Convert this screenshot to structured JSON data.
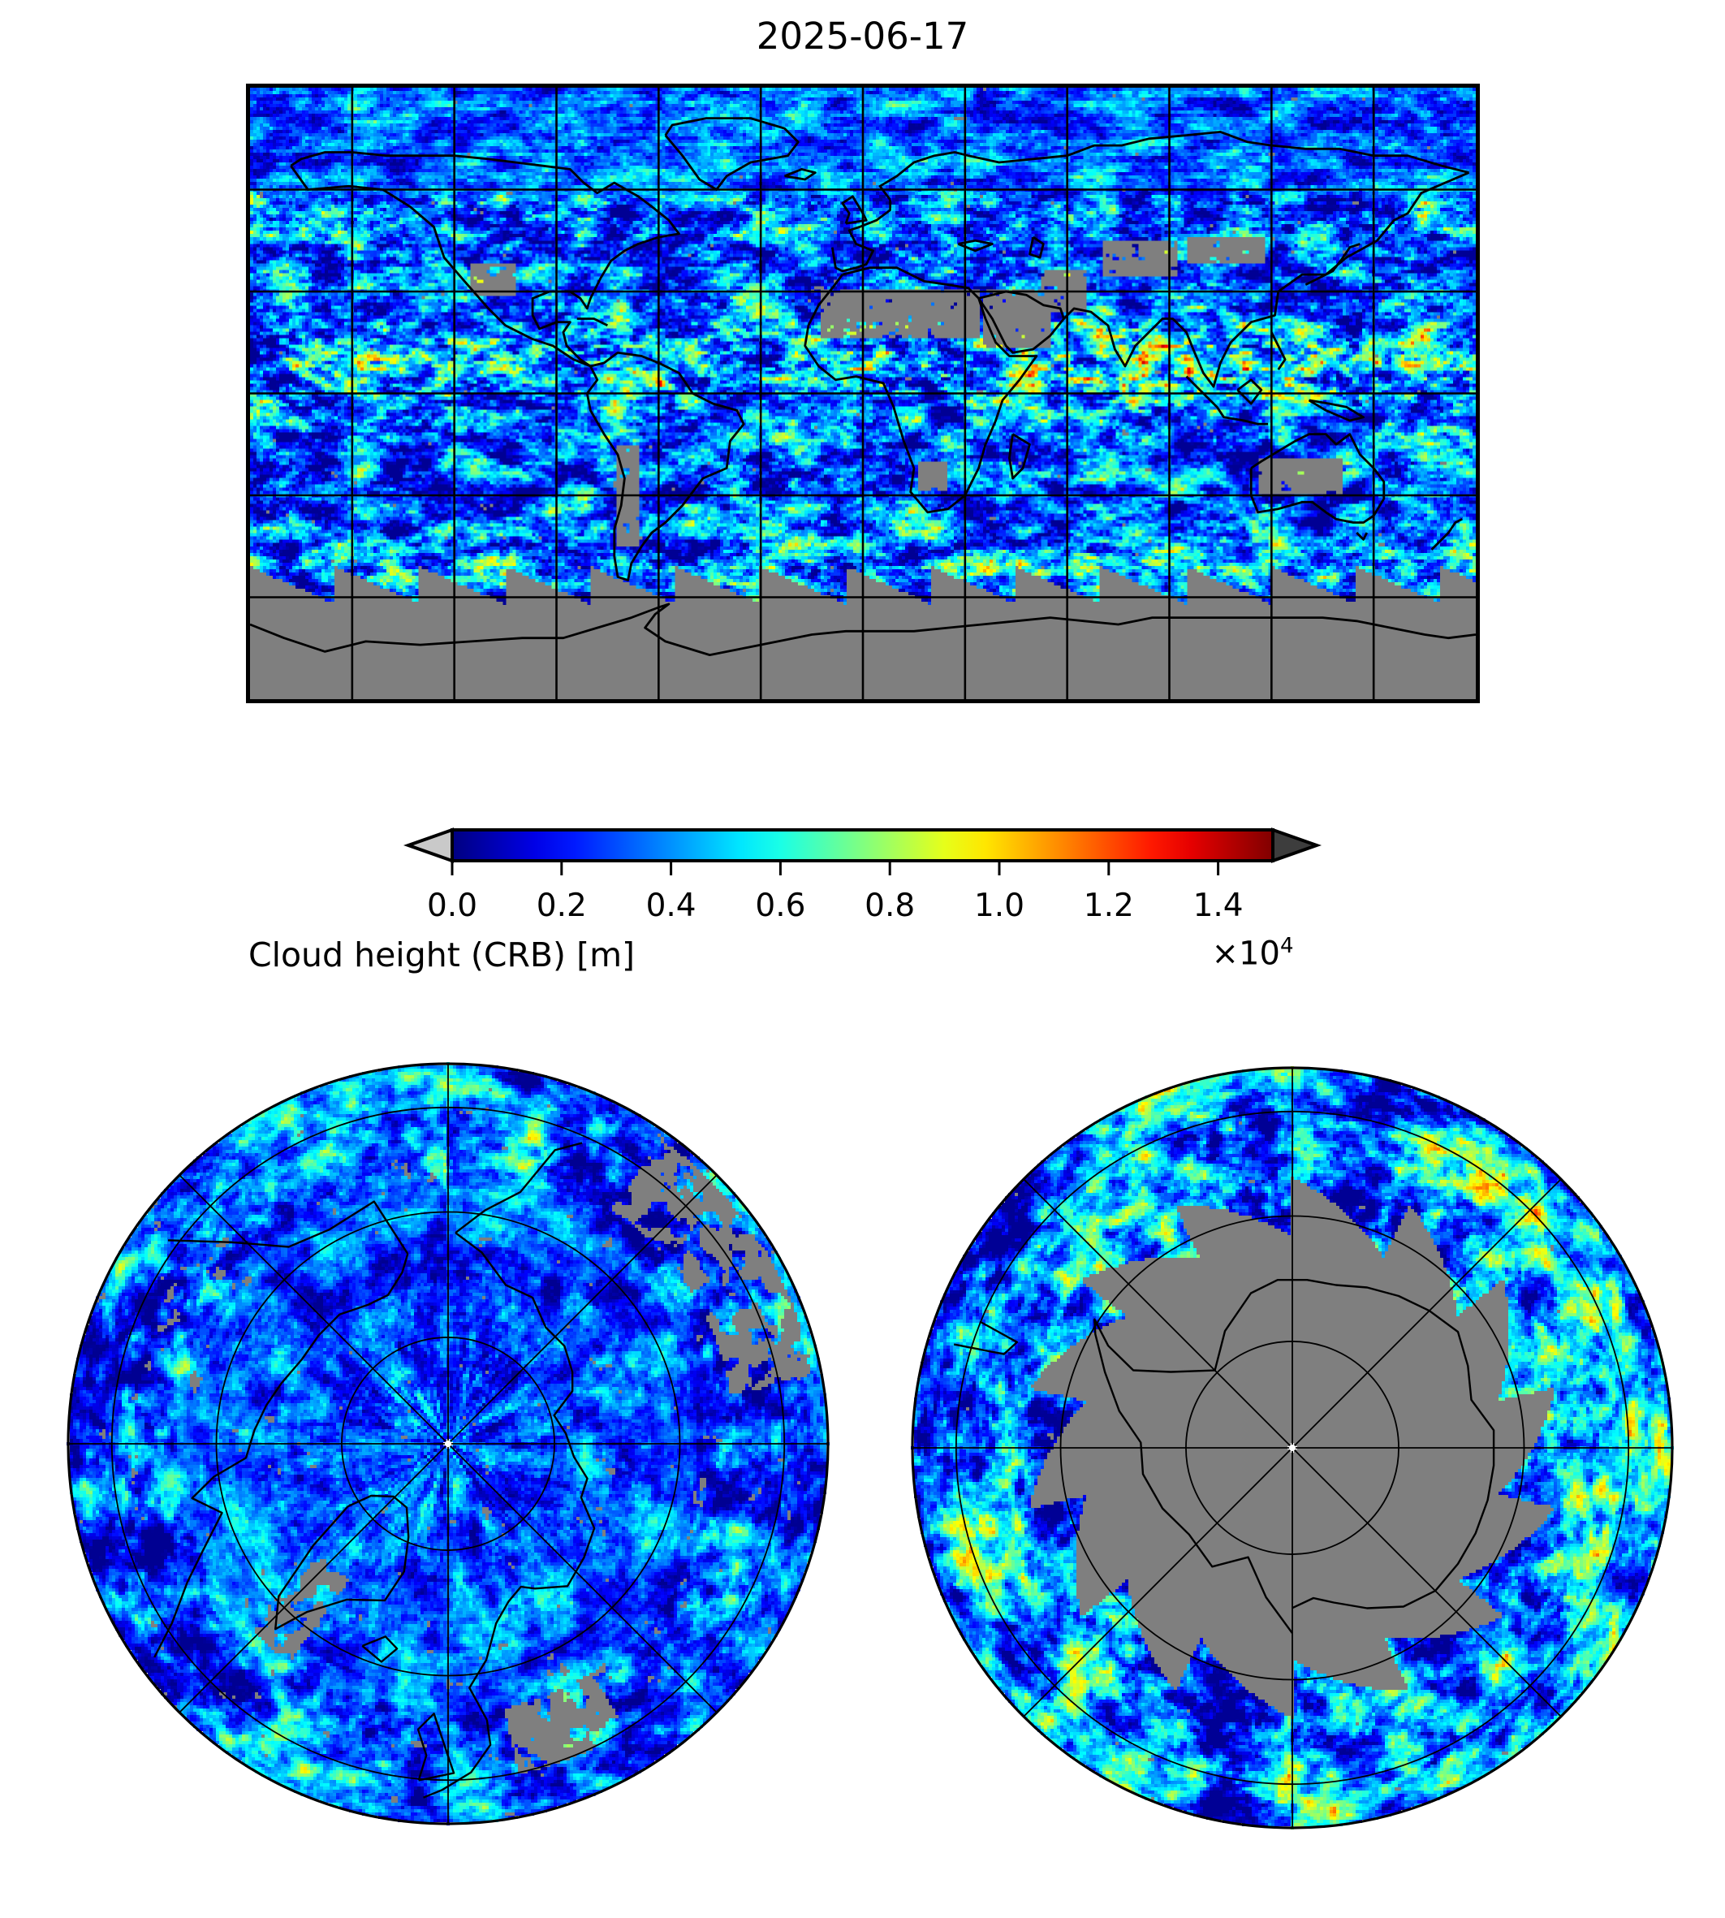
{
  "figure": {
    "title": "2025-06-17",
    "background": "#ffffff"
  },
  "colorbar": {
    "label": "Cloud height (CRB) [m]",
    "offset_text": "×10",
    "offset_exp": "4",
    "ticks": [
      "0.0",
      "0.2",
      "0.4",
      "0.6",
      "0.8",
      "1.0",
      "1.2",
      "1.4"
    ],
    "range_axis_units": [
      0.0,
      1.5
    ],
    "colormap": "jet",
    "under_arrow_color": "#c9c9c9",
    "over_arrow_color": "#3d3d3d",
    "outline_color": "#000000"
  },
  "panels": {
    "global_map": {
      "projection": "equirectangular",
      "graticule_lon_step_deg": 30,
      "graticule_lat_step_deg": 30,
      "nodata_color": "#7f7f7f",
      "coastline_color": "#000000"
    },
    "north_polar": {
      "projection": "polar (Arctic)",
      "ring_fractions": [
        0.28,
        0.61,
        0.885
      ],
      "spoke_step_deg": 45,
      "center_dot_color": "#ffffff"
    },
    "south_polar": {
      "projection": "polar (Antarctic)",
      "ring_fractions": [
        0.28,
        0.61,
        0.885
      ],
      "spoke_step_deg": 45,
      "nodata_cap_color": "#7f7f7f",
      "center_dot_color": "#ffffff"
    }
  },
  "chart_data": {
    "type": "heatmap",
    "title": "2025-06-17",
    "variable": "Cloud height (CRB)",
    "units": "m",
    "value_range_m": [
      0,
      15000
    ],
    "colorbar_ticks_m": [
      0,
      2000,
      4000,
      6000,
      8000,
      10000,
      12000,
      14000
    ],
    "colorbar_tick_labels": [
      "0.0",
      "0.2",
      "0.4",
      "0.6",
      "0.8",
      "1.0",
      "1.2",
      "1.4"
    ],
    "colorbar_offset_text": "×10⁴",
    "colormap": "jet",
    "extend": "both",
    "nodata_color": "#7f7f7f",
    "legend_position": "horizontal, below global map",
    "grid": "on, 30° graticule",
    "panels": [
      {
        "projection": "equirectangular",
        "extent": {
          "lon": [
            -180,
            180
          ],
          "lat": [
            -90,
            90
          ]
        },
        "description": "Global satellite composite of cloud-top height. Dominantly 1000-4000 m (dark blue to blue) over oceans; cyan/green bands 4000-7000 m along mid-latitude storm tracks and the Southern Ocean; yellow-orange 8000-12000 m convective towers along the ITCZ, Indian monsoon and tropical west Pacific; gray no-data over the Sahara, Arabia, central Asia, Australian interior, Andes and most of Antarctica, with a sawtooth swath-gap edge near 55-65 S."
      },
      {
        "projection": "polar_north",
        "extent": "approx 45N to 90N",
        "description": "Arctic view: mostly low blue cloud (1000-3000 m) with brighter cyan frontal bands and scattered gray no-data patches; graticule rings with 45-degree meridian spokes; small white point at the pole."
      },
      {
        "projection": "polar_south",
        "extent": "approx 45S to 90S",
        "description": "Antarctic view: continent is gray no-data with jagged pinwheel swath edges and black coastline; surrounding Southern Ocean ring of blue-to-cyan cloud 1000-6000 m; graticule rings and 45-degree spokes; small white point at the pole."
      }
    ]
  }
}
